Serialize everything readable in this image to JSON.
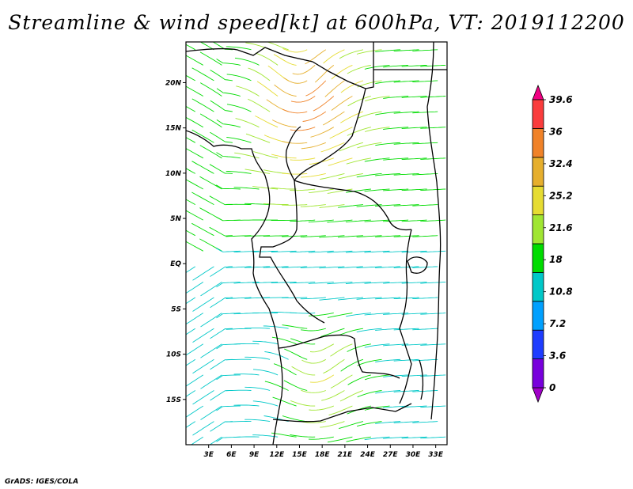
{
  "title": "Streamline & wind speed[kt] at 600hPa, VT: 2019112200",
  "footer": "GrADS: IGES/COLA",
  "map": {
    "lat_labels": [
      "20N",
      "15N",
      "10N",
      "5N",
      "EQ",
      "5S",
      "10S",
      "15S"
    ],
    "lon_labels": [
      "3E",
      "6E",
      "9E",
      "12E",
      "15E",
      "18E",
      "21E",
      "24E",
      "27E",
      "30E",
      "33E"
    ],
    "lat_range": [
      -20,
      24.5
    ],
    "lon_range": [
      0,
      34.5
    ],
    "units": "kt"
  },
  "colorbar": {
    "labels": [
      "0",
      "3.6",
      "7.2",
      "10.8",
      "18",
      "21.6",
      "25.2",
      "32.4",
      "36",
      "39.6"
    ],
    "colors": [
      "#a000c8",
      "#7800dc",
      "#1e3cff",
      "#00a0ff",
      "#00c8c8",
      "#00dc00",
      "#a0e632",
      "#e6dc32",
      "#e6af2d",
      "#f08228",
      "#fa3c3c",
      "#f00082"
    ]
  }
}
